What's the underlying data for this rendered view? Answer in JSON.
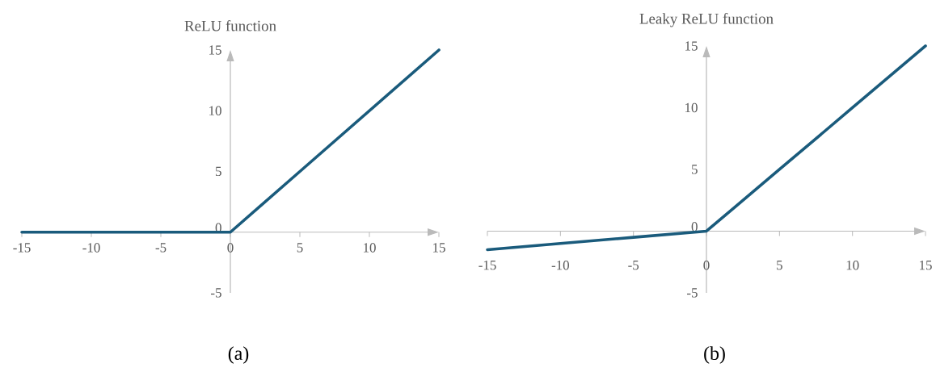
{
  "chart_data": [
    {
      "type": "line",
      "title": "ReLU function",
      "x": [
        -15,
        -10,
        -5,
        0,
        5,
        10,
        15
      ],
      "values": [
        0,
        0,
        0,
        0,
        5,
        10,
        15
      ],
      "color": "#1a5b7c",
      "xlim": [
        -15,
        15
      ],
      "ylim": [
        -5,
        15
      ],
      "xticks": [
        -15,
        -10,
        -5,
        0,
        5,
        10,
        15
      ],
      "yticks": [
        -5,
        0,
        5,
        10,
        15
      ],
      "annotations": [
        "(a)"
      ]
    },
    {
      "type": "line",
      "title": "Leaky ReLU function",
      "x": [
        -15,
        -10,
        -5,
        0,
        5,
        10,
        15
      ],
      "values": [
        -1.5,
        -1,
        -0.5,
        0,
        5,
        10,
        15
      ],
      "color": "#1a5b7c",
      "xlim": [
        -15,
        15
      ],
      "ylim": [
        -5,
        15
      ],
      "xticks": [
        -15,
        -10,
        -5,
        0,
        5,
        10,
        15
      ],
      "yticks": [
        -5,
        0,
        5,
        10,
        15
      ],
      "annotations": [
        "(b)"
      ]
    }
  ]
}
